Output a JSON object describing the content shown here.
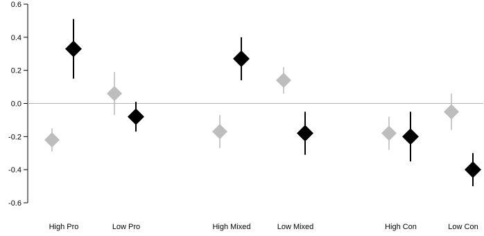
{
  "chart_data": {
    "type": "scatter",
    "categories": [
      "High Pro",
      "Low Pro",
      "High Mixed",
      "Low Mixed",
      "High Con",
      "Low Con"
    ],
    "ylim": [
      -0.6,
      0.6
    ],
    "yticks": [
      "0.6",
      "0.4",
      "0.2",
      "0.0",
      "-0.2",
      "-0.4",
      "-0.6"
    ],
    "reference_line": 0,
    "grid": false,
    "colors": {
      "gray": "#bdbdbd",
      "black": "#000000",
      "refline": "#b3b3b3"
    },
    "series": [
      {
        "color": "gray",
        "points": [
          {
            "category": "High Pro",
            "y": -0.22,
            "lo": -0.29,
            "hi": -0.15
          },
          {
            "category": "Low Pro",
            "y": 0.06,
            "lo": -0.07,
            "hi": 0.19
          },
          {
            "category": "High Mixed",
            "y": -0.17,
            "lo": -0.27,
            "hi": -0.07
          },
          {
            "category": "Low Mixed",
            "y": 0.14,
            "lo": 0.06,
            "hi": 0.22
          },
          {
            "category": "High Con",
            "y": -0.18,
            "lo": -0.28,
            "hi": -0.08
          },
          {
            "category": "Low Con",
            "y": -0.05,
            "lo": -0.16,
            "hi": 0.06
          }
        ]
      },
      {
        "color": "black",
        "points": [
          {
            "category": "High Pro",
            "y": 0.33,
            "lo": 0.15,
            "hi": 0.51
          },
          {
            "category": "Low Pro",
            "y": -0.08,
            "lo": -0.17,
            "hi": 0.01
          },
          {
            "category": "High Mixed",
            "y": 0.27,
            "lo": 0.14,
            "hi": 0.4
          },
          {
            "category": "Low Mixed",
            "y": -0.18,
            "lo": -0.31,
            "hi": -0.05
          },
          {
            "category": "High Con",
            "y": -0.2,
            "lo": -0.35,
            "hi": -0.05
          },
          {
            "category": "Low Con",
            "y": -0.4,
            "lo": -0.5,
            "hi": -0.3
          }
        ]
      }
    ]
  }
}
